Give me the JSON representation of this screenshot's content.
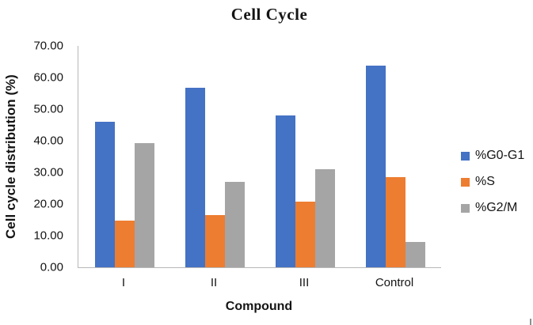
{
  "chart_data": {
    "type": "bar",
    "title": "Cell Cycle",
    "xlabel": "Compound",
    "ylabel": "Cell cycle distribution (%)",
    "categories": [
      "I",
      "II",
      "III",
      "Control"
    ],
    "series": [
      {
        "name": "%G0-G1",
        "color": "#4472C4",
        "values": [
          46.0,
          56.7,
          48.1,
          63.7
        ]
      },
      {
        "name": "%S",
        "color": "#ED7D31",
        "values": [
          14.7,
          16.6,
          20.7,
          28.6
        ]
      },
      {
        "name": "%G2/M",
        "color": "#A5A5A5",
        "values": [
          39.3,
          26.9,
          31.1,
          7.9
        ]
      }
    ],
    "ylim": [
      0,
      70
    ],
    "y_tick_labels": [
      "70.00",
      "60.00",
      "50.00",
      "40.00",
      "30.00",
      "20.00",
      "10.00",
      "0.00"
    ],
    "grid": false,
    "legend_position": "right",
    "axis_color": "#b8b8b8"
  }
}
